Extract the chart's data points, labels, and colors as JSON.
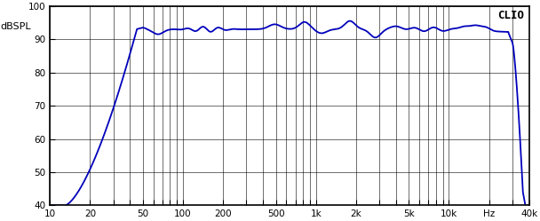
{
  "title": "",
  "ylabel": "dBSPL",
  "xlabel_ticks": [
    "10",
    "20",
    "50",
    "100",
    "200",
    "500",
    "1k",
    "2k",
    "5k",
    "10k",
    "Hz",
    "40k"
  ],
  "xlabel_tick_vals": [
    10,
    20,
    50,
    100,
    200,
    500,
    1000,
    2000,
    5000,
    10000,
    20000,
    40000
  ],
  "ylim": [
    40,
    100
  ],
  "xlim": [
    10,
    40000
  ],
  "yticks": [
    40,
    50,
    60,
    70,
    80,
    90,
    100
  ],
  "grid_color": "#000000",
  "bg_color": "#ffffff",
  "line_color": "#0000bb",
  "line_width": 1.3,
  "clio_text": "CLIO",
  "clio_fontsize": 9
}
